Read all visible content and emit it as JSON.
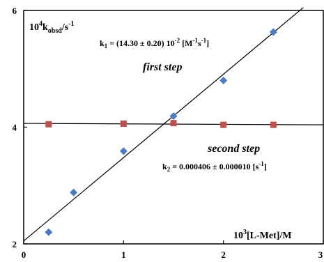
{
  "chart_data": {
    "type": "scatter",
    "ylabel": "10^4k_obsd/s^-1",
    "xlabel": "10^3[L-Met]/M",
    "xlim": [
      0,
      3
    ],
    "ylim": [
      2,
      6
    ],
    "x_ticks": [
      "0",
      "1",
      "2",
      "3"
    ],
    "y_ticks": [
      "2",
      "4",
      "6"
    ],
    "grid": false,
    "series": [
      {
        "marker": "diamond",
        "color": "#4a7cc4",
        "x": [
          0.25,
          0.5,
          1.0,
          1.5,
          2.0,
          2.5
        ],
        "y": [
          2.2,
          2.88,
          3.59,
          4.19,
          4.8,
          5.63
        ]
      },
      {
        "marker": "square",
        "color": "#c0504d",
        "x": [
          0.25,
          1.0,
          1.5,
          2.0,
          2.5
        ],
        "y": [
          4.05,
          4.06,
          4.07,
          4.04,
          4.04
        ]
      }
    ],
    "fit_lines": [
      {
        "x": [
          0,
          2.8
        ],
        "y": [
          2.05,
          6.05
        ]
      },
      {
        "x": [
          0,
          3
        ],
        "y": [
          4.065,
          4.04
        ]
      }
    ],
    "annotations": {
      "k1": "k1 = (14.30 ± 0.20) 10-2 [M-1s-1]",
      "first_step": "first step",
      "second_step": "second step",
      "k2": "k2 = 0.000406 ± 0.000010 [s-1]"
    }
  }
}
